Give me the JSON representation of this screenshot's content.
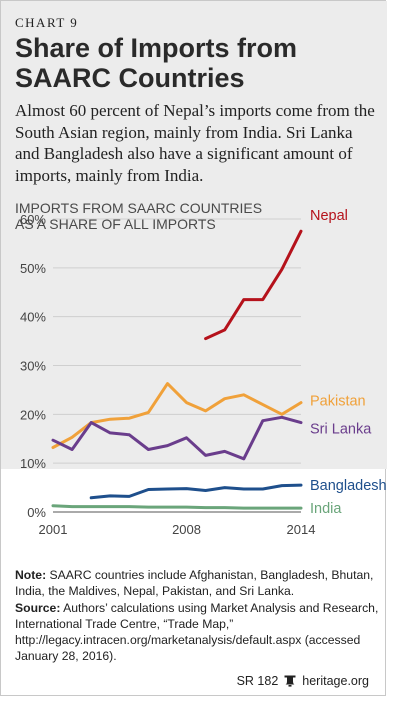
{
  "card": {
    "chart_label": "CHART 9",
    "title": "Share of Imports from SAARC Countries",
    "subtitle": "Almost 60 percent of Nepal’s imports come from the South Asian region, mainly from India. Sri Lanka and Bangladesh also have a significant amount of imports, mainly from India.",
    "chart_heading_line1": "IMPORTS FROM SAARC COUNTRIES",
    "chart_heading_line2": "AS A SHARE OF ALL IMPORTS"
  },
  "notes": {
    "note_label": "Note:",
    "note_text": "SAARC countries include Afghanistan, Bangladesh, Bhutan, India, the Maldives, Nepal, Pakistan, and Sri Lanka.",
    "source_label": "Source:",
    "source_text": "Authors’ calculations using Market Analysis and Research, International Trade Centre, “Trade Map,” http://legacy.intracen.org/marketanalysis/default.aspx (accessed January 28, 2016)."
  },
  "footer": {
    "report": "SR 182",
    "site": "heritage.org",
    "icon": "bell-icon"
  },
  "chart_data": {
    "type": "line",
    "x": [
      2001,
      2002,
      2003,
      2004,
      2005,
      2006,
      2007,
      2008,
      2009,
      2010,
      2011,
      2012,
      2013,
      2014
    ],
    "xticks": [
      "2001",
      "2008",
      "2014"
    ],
    "yticks": [
      "0%",
      "10%",
      "20%",
      "30%",
      "40%",
      "50%",
      "60%"
    ],
    "ylim": [
      0,
      60
    ],
    "grid": true,
    "series": [
      {
        "name": "Nepal",
        "color": "#b5121b",
        "values": [
          null,
          null,
          null,
          null,
          null,
          null,
          null,
          null,
          35.5,
          37.3,
          43.5,
          43.5,
          49.7,
          57.5
        ]
      },
      {
        "name": "Pakistan",
        "color": "#f0a13a",
        "values": [
          13.2,
          15.3,
          18.3,
          19.0,
          19.2,
          20.4,
          26.3,
          22.4,
          20.7,
          23.2,
          24.0,
          22.0,
          20.0,
          22.4
        ]
      },
      {
        "name": "Sri Lanka",
        "color": "#6a3d8c",
        "values": [
          14.7,
          12.8,
          18.3,
          16.2,
          15.8,
          12.8,
          13.6,
          15.2,
          11.6,
          12.4,
          10.9,
          18.7,
          19.4,
          18.3
        ]
      },
      {
        "name": "Bangladesh",
        "color": "#1e4f8c",
        "values": [
          null,
          null,
          2.9,
          3.3,
          3.2,
          4.6,
          4.7,
          4.8,
          4.4,
          5.0,
          4.7,
          4.7,
          5.4,
          5.5
        ]
      },
      {
        "name": "India",
        "color": "#6aa57a",
        "values": [
          1.3,
          1.1,
          1.1,
          1.1,
          1.1,
          1.0,
          1.0,
          1.0,
          0.9,
          0.9,
          0.8,
          0.8,
          0.8,
          0.8
        ]
      }
    ]
  }
}
